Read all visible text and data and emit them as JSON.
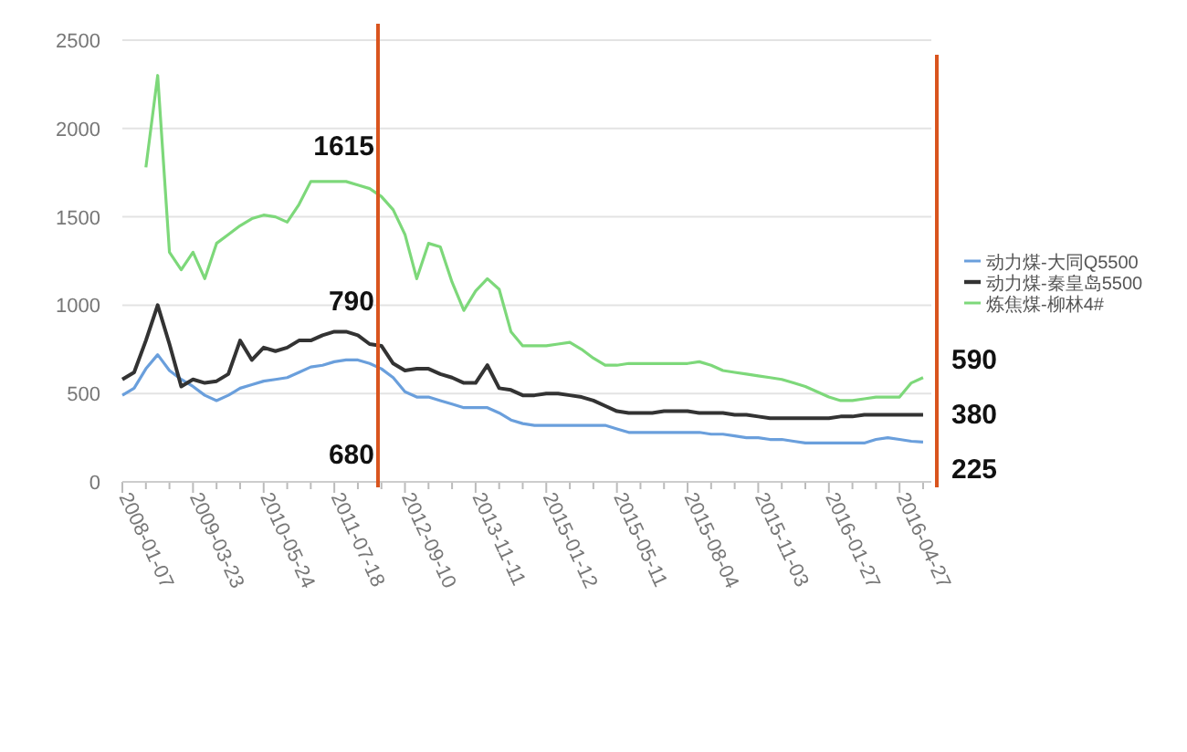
{
  "chart_data": {
    "type": "line",
    "categories": [
      "2008-01-07",
      null,
      null,
      null,
      null,
      null,
      "2009-03-23",
      null,
      null,
      null,
      null,
      null,
      "2010-05-24",
      null,
      null,
      null,
      null,
      null,
      "2011-07-18",
      null,
      null,
      null,
      null,
      null,
      "2012-09-10",
      null,
      null,
      null,
      null,
      null,
      "2013-11-11",
      null,
      null,
      null,
      null,
      null,
      "2015-01-12",
      null,
      null,
      null,
      null,
      null,
      "2015-05-11",
      null,
      null,
      null,
      null,
      null,
      "2015-08-04",
      null,
      null,
      null,
      null,
      null,
      "2015-11-03",
      null,
      null,
      null,
      null,
      null,
      "2016-01-27",
      null,
      null,
      null,
      null,
      null,
      "2016-04-27",
      null,
      null
    ],
    "ylim": [
      0,
      2500
    ],
    "yticks": [
      0,
      500,
      1000,
      1500,
      2000,
      2500
    ],
    "grid": "y",
    "legend": "right",
    "series": [
      {
        "name": "动力煤-大同Q5500",
        "color": "#6a9fdc",
        "values": [
          490,
          530,
          640,
          720,
          630,
          580,
          540,
          490,
          460,
          490,
          530,
          550,
          570,
          580,
          590,
          620,
          650,
          660,
          680,
          690,
          690,
          670,
          640,
          590,
          510,
          480,
          480,
          460,
          440,
          420,
          420,
          420,
          390,
          350,
          330,
          320,
          320,
          320,
          320,
          320,
          320,
          320,
          300,
          280,
          280,
          280,
          280,
          280,
          280,
          280,
          270,
          270,
          260,
          250,
          250,
          240,
          240,
          230,
          220,
          220,
          220,
          220,
          220,
          220,
          240,
          250,
          240,
          230,
          225
        ]
      },
      {
        "name": "动力煤-秦皇岛5500",
        "color": "#333333",
        "values": [
          580,
          620,
          800,
          1000,
          780,
          540,
          580,
          560,
          570,
          610,
          800,
          690,
          760,
          740,
          760,
          800,
          800,
          830,
          850,
          850,
          830,
          780,
          770,
          670,
          630,
          640,
          640,
          610,
          590,
          560,
          560,
          660,
          530,
          520,
          490,
          490,
          500,
          500,
          490,
          480,
          460,
          430,
          400,
          390,
          390,
          390,
          400,
          400,
          400,
          390,
          390,
          390,
          380,
          380,
          370,
          360,
          360,
          360,
          360,
          360,
          360,
          370,
          370,
          380,
          380,
          380,
          380,
          380,
          380
        ]
      },
      {
        "name": "炼焦煤-柳林4#",
        "color": "#7dd87a",
        "values": [
          null,
          null,
          1780,
          2300,
          1300,
          1200,
          1300,
          1150,
          1350,
          1400,
          1450,
          1490,
          1510,
          1500,
          1470,
          1570,
          1700,
          1700,
          1700,
          1700,
          1680,
          1660,
          1615,
          1540,
          1400,
          1150,
          1350,
          1330,
          1130,
          970,
          1080,
          1150,
          1090,
          850,
          770,
          770,
          770,
          780,
          790,
          750,
          700,
          660,
          660,
          670,
          670,
          670,
          670,
          670,
          670,
          680,
          660,
          630,
          620,
          610,
          600,
          590,
          580,
          560,
          540,
          510,
          480,
          460,
          460,
          470,
          480,
          480,
          480,
          560,
          590
        ]
      }
    ],
    "annotations": [
      "1615",
      "790",
      "680",
      "590",
      "380",
      "225"
    ]
  }
}
